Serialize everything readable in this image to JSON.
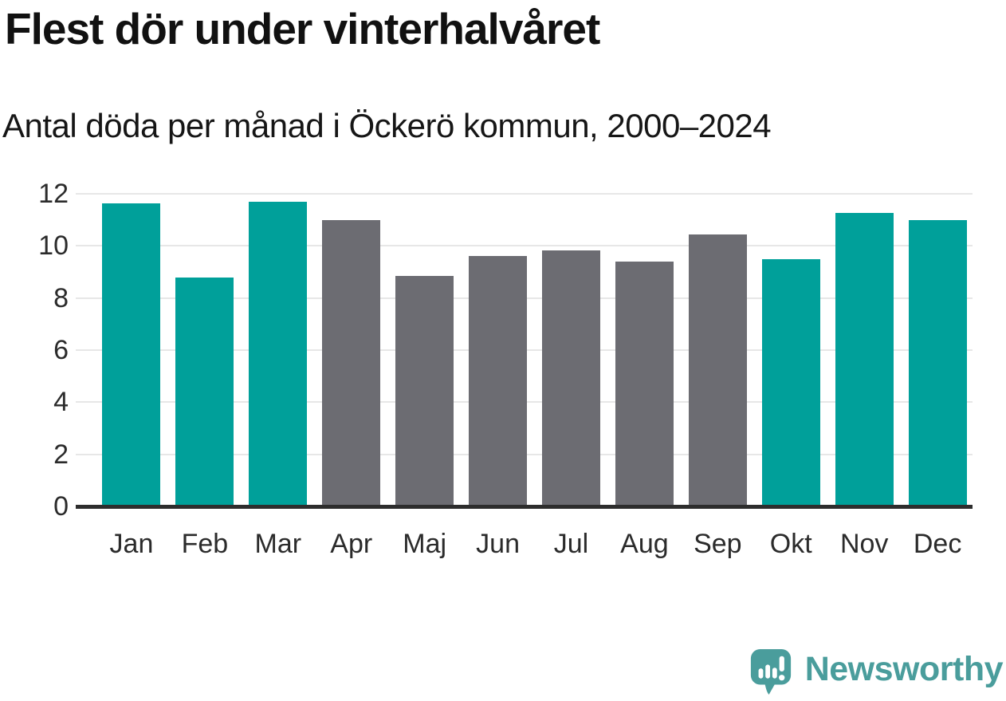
{
  "title": "Flest dör under vinterhalvåret",
  "subtitle": "Antal döda per månad i Öckerö kommun, 2000–2024",
  "footer": {
    "brand": "Newsworthy",
    "logo_icon": "speech-bubble-with-bar-chart-and-exclamation"
  },
  "colors": {
    "winter_bar": "#00a09a",
    "summer_bar": "#6c6c72",
    "axis_text": "#2b2b2b",
    "gridline": "#e7e7e7",
    "baseline": "#2d2d2d",
    "title_text": "#111111",
    "brand_teal": "#4a9d9c"
  },
  "chart_data": {
    "type": "bar",
    "title": "Flest dör under vinterhalvåret",
    "subtitle": "Antal döda per månad i Öckerö kommun, 2000–2024",
    "categories": [
      "Jan",
      "Feb",
      "Mar",
      "Apr",
      "Maj",
      "Jun",
      "Jul",
      "Aug",
      "Sep",
      "Okt",
      "Nov",
      "Dec"
    ],
    "values": [
      11.64,
      8.8,
      11.68,
      11.0,
      8.84,
      9.6,
      9.84,
      9.4,
      10.44,
      9.48,
      11.28,
      11.0
    ],
    "bar_colors": [
      "#00a09a",
      "#00a09a",
      "#00a09a",
      "#6c6c72",
      "#6c6c72",
      "#6c6c72",
      "#6c6c72",
      "#6c6c72",
      "#6c6c72",
      "#00a09a",
      "#00a09a",
      "#00a09a"
    ],
    "xlabel": "",
    "ylabel": "",
    "ylim": [
      0,
      12
    ],
    "yticks": [
      0,
      2,
      4,
      6,
      8,
      10,
      12
    ],
    "grid": "horizontal",
    "legend": "none"
  }
}
